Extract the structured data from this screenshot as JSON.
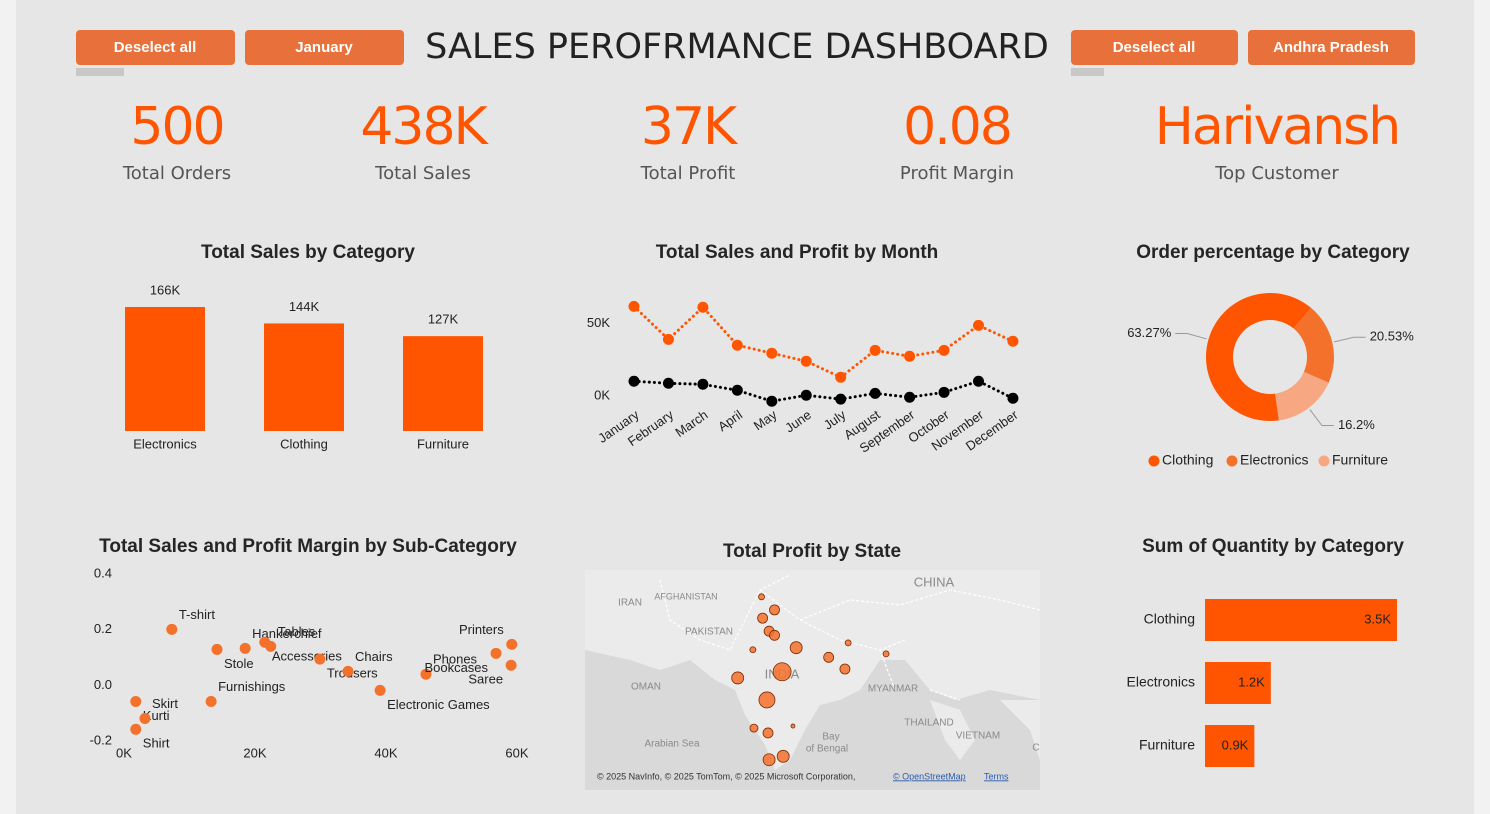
{
  "header": {
    "title": "SALES PEROFRMANCE DASHBOARD",
    "buttons": [
      "Deselect all",
      "January",
      "Deselect all",
      "Andhra Pradesh"
    ]
  },
  "kpis": [
    {
      "value": "500",
      "label": "Total Orders"
    },
    {
      "value": "438K",
      "label": "Total Sales"
    },
    {
      "value": "37K",
      "label": "Total Profit"
    },
    {
      "value": "0.08",
      "label": "Profit Margin"
    },
    {
      "value": "Harivansh",
      "label": "Top Customer"
    }
  ],
  "chart_data": [
    {
      "type": "bar",
      "title": "Total Sales by Category",
      "categories": [
        "Electronics",
        "Clothing",
        "Furniture"
      ],
      "values": [
        166000,
        144000,
        127000
      ],
      "value_labels": [
        "166K",
        "144K",
        "127K"
      ],
      "color": "#ff5500"
    },
    {
      "type": "line",
      "title": "Total Sales and Profit by Month",
      "categories": [
        "January",
        "February",
        "March",
        "April",
        "May",
        "June",
        "July",
        "August",
        "September",
        "October",
        "November",
        "December"
      ],
      "series": [
        {
          "color": "#ff5500",
          "values": [
            61600,
            39000,
            61000,
            35000,
            29500,
            24000,
            13000,
            31500,
            27400,
            31500,
            48600,
            37700
          ]
        },
        {
          "color": "#000000",
          "values": [
            10300,
            8900,
            8200,
            4100,
            -3400,
            700,
            -2000,
            2000,
            -700,
            2700,
            10300,
            -1400
          ]
        }
      ],
      "ylim": [
        -6000,
        66000
      ],
      "yticks": [
        {
          "value": 0,
          "label": "0K"
        },
        {
          "value": 50000,
          "label": "50K"
        }
      ],
      "grid": false
    },
    {
      "type": "pie",
      "title": "Order percentage by Category",
      "categories": [
        "Clothing",
        "Electronics",
        "Furniture"
      ],
      "values": [
        63.27,
        20.53,
        16.2
      ],
      "value_labels": [
        "63.27%",
        "20.53%",
        "16.2%"
      ],
      "colors": [
        "#ff5500",
        "#f4712b",
        "#f8a783"
      ],
      "legend": "bottom"
    },
    {
      "type": "scatter",
      "title": "Total Sales and Profit Margin by Sub-Category",
      "point_labels": [
        "T-shirt",
        "Stole",
        "Hankerchief",
        "Accessories",
        "Tables",
        "Trousers",
        "Chairs",
        "Electronic Games",
        "Phones",
        "Bookcases",
        "Printers",
        "Saree",
        "Furnishings",
        "Kurti",
        "Skirt",
        "Shirt"
      ],
      "x": [
        7300,
        14200,
        18500,
        21500,
        22400,
        29900,
        34200,
        39100,
        46100,
        56800,
        59200,
        59100,
        13300,
        1800,
        3200,
        1800
      ],
      "values": [
        0.201,
        0.129,
        0.133,
        0.155,
        0.14,
        0.094,
        0.05,
        -0.018,
        0.04,
        0.115,
        0.147,
        0.072,
        -0.058,
        -0.058,
        -0.119,
        -0.158
      ],
      "color": "#f4712b",
      "xlim": [
        0,
        60000
      ],
      "xticks": [
        {
          "value": 0,
          "label": "0K"
        },
        {
          "value": 20000,
          "label": "20K"
        },
        {
          "value": 40000,
          "label": "40K"
        },
        {
          "value": 60000,
          "label": "60K"
        }
      ],
      "ylim": [
        -0.2,
        0.4
      ],
      "yticks": [
        -0.2,
        {
          "value": 0,
          "label": "0.0"
        },
        0.2,
        0.4
      ]
    },
    {
      "type": "map",
      "title": "Total Profit by State",
      "color": "#f4712b",
      "x": [
        74.3,
        75.5,
        74.4,
        75.0,
        75.5,
        73.5,
        76.2,
        77.5,
        80.5,
        82.3,
        82.0,
        85.8,
        72.1,
        74.8,
        77.2,
        73.6,
        74.9,
        75.0,
        76.3
      ],
      "y": [
        34.1,
        32.2,
        31.0,
        29.1,
        28.5,
        26.4,
        23.2,
        26.7,
        25.3,
        27.4,
        23.6,
        25.8,
        22.3,
        19.1,
        15.3,
        15.0,
        14.3,
        10.4,
        10.9
      ],
      "values": [
        640,
        1780,
        1780,
        1780,
        1780,
        640,
        5750,
        2560,
        1780,
        640,
        1780,
        640,
        2560,
        4540,
        280,
        1140,
        1780,
        2560,
        2560
      ],
      "place_labels": [
        "IRAN",
        "AFGHANISTAN",
        "PAKISTAN",
        "CHINA",
        "INDIA",
        "OMAN",
        "MYANMAR",
        "THAILAND",
        "VIETNAM",
        "Arabian Sea",
        "Bay",
        "of Bengal",
        "C"
      ],
      "attribution": "© 2025 NavInfo, © 2025 TomTom, © 2025 Microsoft Corporation,",
      "links": [
        "© OpenStreetMap",
        "Terms"
      ]
    },
    {
      "type": "barh",
      "title": "Sum of Quantity by Category",
      "categories": [
        "Clothing",
        "Electronics",
        "Furniture"
      ],
      "values": [
        3500,
        1200,
        900
      ],
      "value_labels": [
        "3.5K",
        "1.2K",
        "0.9K"
      ],
      "color": "#ff5500"
    }
  ]
}
